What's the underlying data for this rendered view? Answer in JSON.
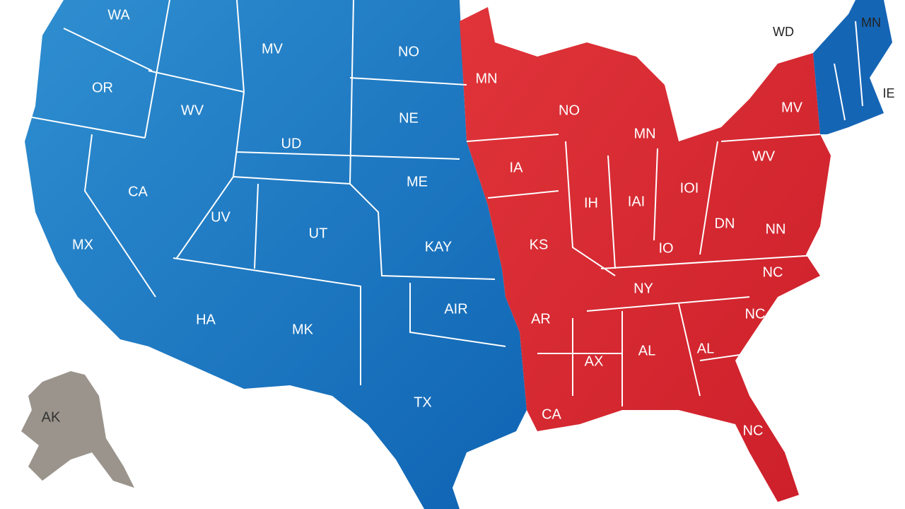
{
  "labels": [
    "WA",
    "MV",
    "OR",
    "WV",
    "NO",
    "UD",
    "NE",
    "CA",
    "ME",
    "UV",
    "UT",
    "MX",
    "KAY",
    "HA",
    "MK",
    "AIR",
    "TX",
    "MN",
    "NO",
    "MN",
    "IA",
    "MV",
    "WV",
    "IOI",
    "IH",
    "IAI",
    "DN",
    "NN",
    "KS",
    "IO",
    "NY",
    "NC",
    "AR",
    "NC",
    "AX",
    "AL",
    "AL",
    "CA",
    "NC",
    "AK",
    "MN",
    "WD",
    "IE"
  ]
}
